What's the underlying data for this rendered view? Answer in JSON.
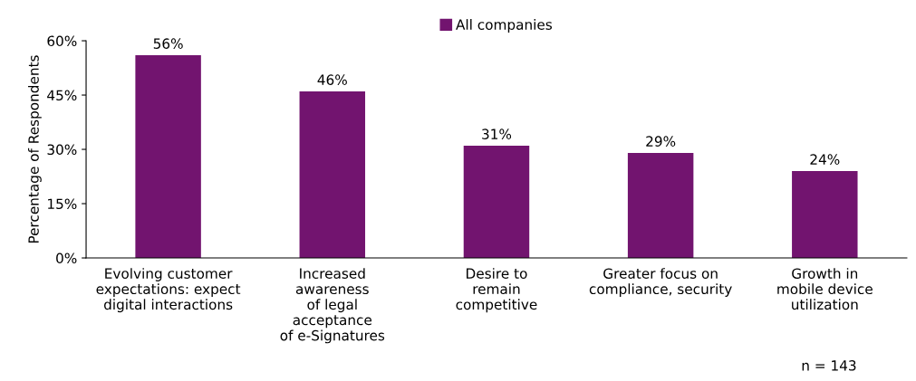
{
  "chart_data": {
    "type": "bar",
    "categories": [
      "Evolving customer\nexpectations: expect\ndigital interactions",
      "Increased\nawareness\nof legal\nacceptance\nof e-Signatures",
      "Desire to\nremain\ncompetitive",
      "Greater focus on\ncompliance, security",
      "Growth in\nmobile device\nutilization"
    ],
    "series": [
      {
        "name": "All companies",
        "color": "#72146f",
        "values": [
          56,
          46,
          31,
          29,
          24
        ],
        "value_labels": [
          "56%",
          "46%",
          "31%",
          "29%",
          "24%"
        ]
      }
    ],
    "ylabel": "Percentage of Respondents",
    "ylim": [
      0,
      60
    ],
    "yticks": [
      {
        "value": 0,
        "label": "0%"
      },
      {
        "value": 15,
        "label": "15%"
      },
      {
        "value": 30,
        "label": "30%"
      },
      {
        "value": 45,
        "label": "45%"
      },
      {
        "value": 60,
        "label": "60%"
      }
    ],
    "legend": "top",
    "grid": false,
    "annotations": [
      "n = 143"
    ]
  }
}
